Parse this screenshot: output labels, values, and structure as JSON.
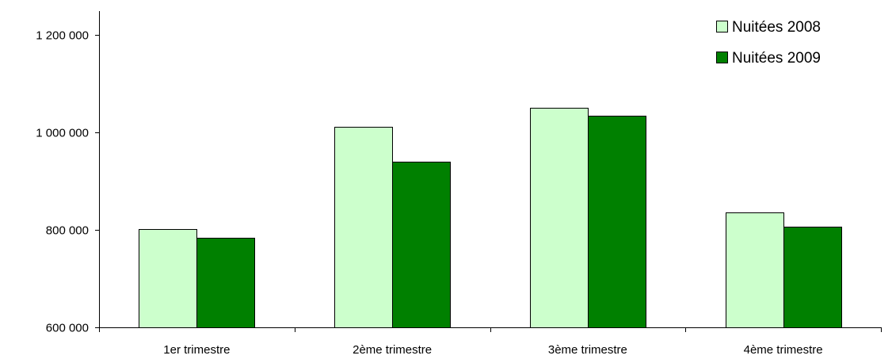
{
  "chart_data": {
    "type": "bar",
    "categories": [
      "1er trimestre",
      "2ème trimestre",
      "3ème trimestre",
      "4ème trimestre"
    ],
    "series": [
      {
        "name": "Nuitées 2008",
        "color": "#ccffcc",
        "values": [
          802000,
          1011000,
          1050000,
          835000
        ]
      },
      {
        "name": "Nuitées 2009",
        "color": "#008000",
        "values": [
          783000,
          940000,
          1034000,
          806000
        ]
      }
    ],
    "yticks": [
      600000,
      800000,
      1000000,
      1200000
    ],
    "ytick_labels": [
      "600 000",
      "800 000",
      "1 000 000",
      "1 200 000"
    ],
    "ylim": [
      600000,
      1230000
    ],
    "legend": "top-right",
    "grid": false,
    "title": "",
    "xlabel": "",
    "ylabel": ""
  }
}
